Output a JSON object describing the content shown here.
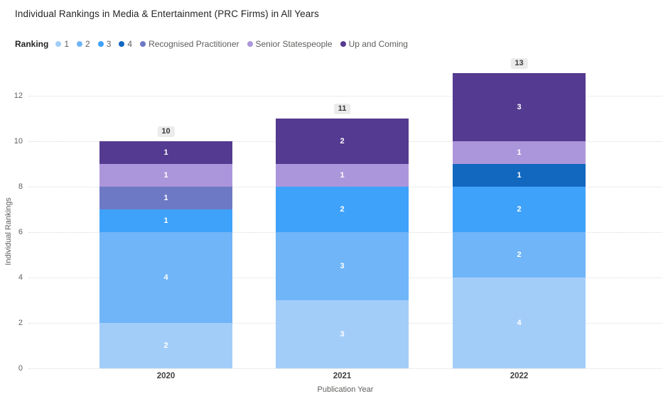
{
  "title": "Individual Rankings in Media & Entertainment (PRC Firms) in All Years",
  "legend": {
    "title": "Ranking",
    "items": [
      {
        "label": "1",
        "color": "#A3CDF9"
      },
      {
        "label": "2",
        "color": "#6FB5F8"
      },
      {
        "label": "3",
        "color": "#3FA2FA"
      },
      {
        "label": "4",
        "color": "#1267BE"
      },
      {
        "label": "Recognised Practitioner",
        "color": "#6E79C5"
      },
      {
        "label": "Senior Statespeople",
        "color": "#AC96DB"
      },
      {
        "label": "Up and Coming",
        "color": "#543A90"
      }
    ]
  },
  "chart_data": {
    "type": "bar",
    "stacked": true,
    "title": "Individual Rankings in Media & Entertainment (PRC Firms) in All Years",
    "xlabel": "Publication Year",
    "ylabel": "Individual Rankings",
    "categories": [
      "2020",
      "2021",
      "2022"
    ],
    "series": [
      {
        "name": "1",
        "color": "#A3CDF9",
        "values": [
          2,
          3,
          4
        ]
      },
      {
        "name": "2",
        "color": "#6FB5F8",
        "values": [
          4,
          3,
          2
        ]
      },
      {
        "name": "3",
        "color": "#3FA2FA",
        "values": [
          1,
          2,
          2
        ]
      },
      {
        "name": "4",
        "color": "#1267BE",
        "values": [
          0,
          0,
          1
        ]
      },
      {
        "name": "Recognised Practitioner",
        "color": "#6E79C5",
        "values": [
          1,
          0,
          0
        ]
      },
      {
        "name": "Senior Statespeople",
        "color": "#AC96DB",
        "values": [
          1,
          1,
          1
        ]
      },
      {
        "name": "Up and Coming",
        "color": "#543A90",
        "values": [
          1,
          2,
          3
        ]
      }
    ],
    "totals": [
      10,
      11,
      13
    ],
    "ylim": [
      0,
      13
    ],
    "yticks": [
      0,
      2,
      4,
      6,
      8,
      10,
      12
    ],
    "grid": "dotted-horizontal",
    "legend_position": "top-left",
    "data_labels": "inside-white",
    "total_labels": "above-gray-badge"
  }
}
